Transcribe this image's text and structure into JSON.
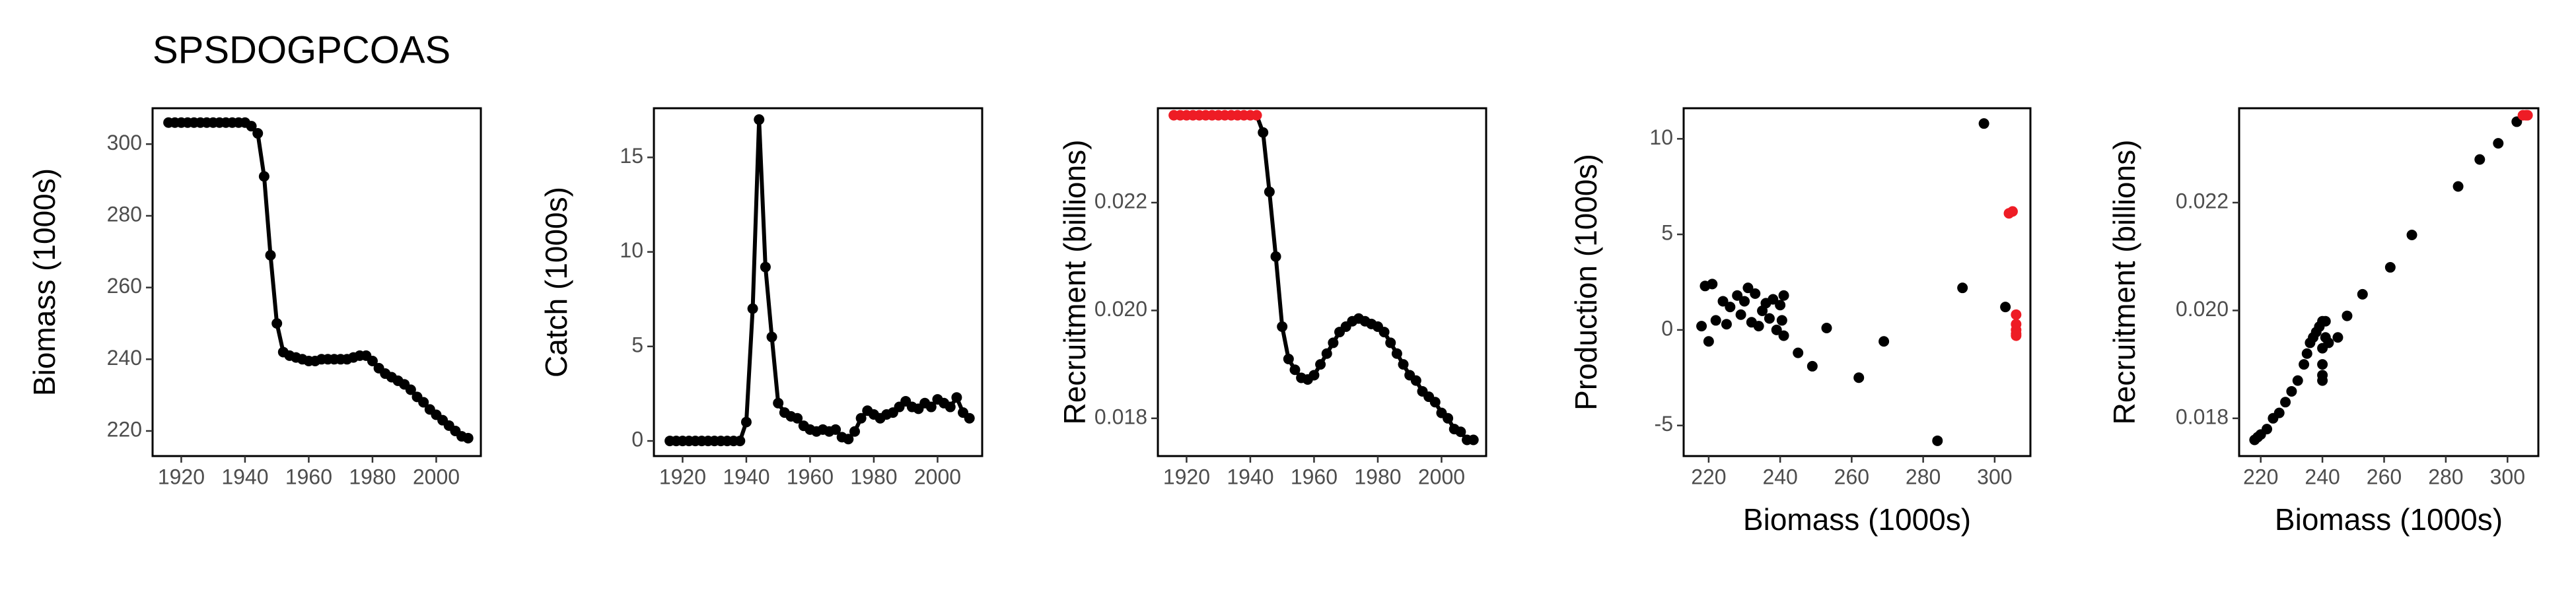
{
  "chart_data": [
    {
      "type": "line",
      "title": "SPSDOGPCOAS",
      "ylabel": "Biomass (1000s)",
      "x": [
        1916,
        1918,
        1920,
        1922,
        1924,
        1926,
        1928,
        1930,
        1932,
        1934,
        1936,
        1938,
        1940,
        1942,
        1944,
        1946,
        1948,
        1950,
        1952,
        1954,
        1956,
        1958,
        1960,
        1962,
        1964,
        1966,
        1968,
        1970,
        1972,
        1974,
        1976,
        1978,
        1980,
        1982,
        1984,
        1986,
        1988,
        1990,
        1992,
        1994,
        1996,
        1998,
        2000,
        2002,
        2004,
        2006,
        2008,
        2010
      ],
      "xlim": [
        1911,
        2014
      ],
      "xticks": [
        1920,
        1940,
        1960,
        1980,
        2000
      ],
      "ylim": [
        213,
        310
      ],
      "yticks": [
        220,
        240,
        260,
        280,
        300
      ],
      "series": [
        {
          "color": "#000000",
          "values": [
            306,
            306,
            306,
            306,
            306,
            306,
            306,
            306,
            306,
            306,
            306,
            306,
            306,
            305,
            303,
            291,
            269,
            250,
            242,
            241,
            240.5,
            240,
            239.5,
            239.5,
            240,
            240,
            240,
            240,
            240,
            240.5,
            241,
            241,
            239.5,
            237.5,
            236,
            235,
            234,
            233,
            231.5,
            229.5,
            228,
            226,
            224.5,
            223,
            221.5,
            220,
            218.5,
            218
          ]
        }
      ]
    },
    {
      "type": "line",
      "ylabel": "Catch (1000s)",
      "x": [
        1916,
        1918,
        1920,
        1922,
        1924,
        1926,
        1928,
        1930,
        1932,
        1934,
        1936,
        1938,
        1940,
        1942,
        1944,
        1946,
        1948,
        1950,
        1952,
        1954,
        1956,
        1958,
        1960,
        1962,
        1964,
        1966,
        1968,
        1970,
        1972,
        1974,
        1976,
        1978,
        1980,
        1982,
        1984,
        1986,
        1988,
        1990,
        1992,
        1994,
        1996,
        1998,
        2000,
        2002,
        2004,
        2006,
        2008,
        2010
      ],
      "xlim": [
        1911,
        2014
      ],
      "xticks": [
        1920,
        1940,
        1960,
        1980,
        2000
      ],
      "ylim": [
        -0.8,
        17.6
      ],
      "yticks": [
        0,
        5,
        10,
        15
      ],
      "series": [
        {
          "color": "#000000",
          "values": [
            0,
            0,
            0,
            0,
            0,
            0,
            0,
            0,
            0,
            0,
            0,
            0,
            1,
            7,
            17,
            9.2,
            5.5,
            2,
            1.5,
            1.3,
            1.2,
            0.8,
            0.6,
            0.5,
            0.6,
            0.5,
            0.6,
            0.2,
            0.1,
            0.5,
            1.2,
            1.6,
            1.4,
            1.2,
            1.4,
            1.5,
            1.8,
            2.1,
            1.8,
            1.7,
            2,
            1.8,
            2.2,
            2,
            1.8,
            2.3,
            1.5,
            1.2
          ]
        }
      ]
    },
    {
      "type": "line",
      "ylabel": "Recruitment (billions)",
      "x": [
        1916,
        1918,
        1920,
        1922,
        1924,
        1926,
        1928,
        1930,
        1932,
        1934,
        1936,
        1938,
        1940,
        1942,
        1944,
        1946,
        1948,
        1950,
        1952,
        1954,
        1956,
        1958,
        1960,
        1962,
        1964,
        1966,
        1968,
        1970,
        1972,
        1974,
        1976,
        1978,
        1980,
        1982,
        1984,
        1986,
        1988,
        1990,
        1992,
        1994,
        1996,
        1998,
        2000,
        2002,
        2004,
        2006,
        2008,
        2010
      ],
      "xlim": [
        1911,
        2014
      ],
      "xticks": [
        1920,
        1940,
        1960,
        1980,
        2000
      ],
      "ylim": [
        0.0173,
        0.02375
      ],
      "yticks": [
        0.018,
        {
          "value": 0.02,
          "label": "0.020"
        },
        0.022
      ],
      "series": [
        {
          "color": "#000000",
          "values": [
            0.02362,
            0.02362,
            0.02362,
            0.02362,
            0.02362,
            0.02362,
            0.02362,
            0.02362,
            0.02362,
            0.02362,
            0.02362,
            0.02362,
            0.02362,
            0.02362,
            0.0233,
            0.0222,
            0.021,
            0.0197,
            0.0191,
            0.0189,
            0.01875,
            0.01872,
            0.0188,
            0.019,
            0.0192,
            0.0194,
            0.0196,
            0.0197,
            0.0198,
            0.01985,
            0.0198,
            0.01975,
            0.0197,
            0.0196,
            0.0194,
            0.0192,
            0.019,
            0.0188,
            0.0187,
            0.0185,
            0.0184,
            0.0183,
            0.0181,
            0.018,
            0.0178,
            0.01775,
            0.0176,
            0.0176
          ],
          "point_colors": [
            "#ee1c25",
            "#ee1c25",
            "#ee1c25",
            "#ee1c25",
            "#ee1c25",
            "#ee1c25",
            "#ee1c25",
            "#ee1c25",
            "#ee1c25",
            "#ee1c25",
            "#ee1c25",
            "#ee1c25",
            "#ee1c25",
            "#ee1c25",
            "#000000",
            "#000000",
            "#000000",
            "#000000",
            "#000000",
            "#000000",
            "#000000",
            "#000000",
            "#000000",
            "#000000",
            "#000000",
            "#000000",
            "#000000",
            "#000000",
            "#000000",
            "#000000",
            "#000000",
            "#000000",
            "#000000",
            "#000000",
            "#000000",
            "#000000",
            "#000000",
            "#000000",
            "#000000",
            "#000000",
            "#000000",
            "#000000",
            "#000000",
            "#000000",
            "#000000",
            "#000000",
            "#000000",
            "#000000"
          ]
        }
      ]
    },
    {
      "type": "scatter",
      "xlabel": "Biomass (1000s)",
      "ylabel": "Production (1000s)",
      "xlim": [
        213,
        310
      ],
      "xticks": [
        220,
        240,
        260,
        280,
        300
      ],
      "ylim": [
        -6.6,
        11.6
      ],
      "yticks": [
        -5,
        0,
        5,
        10
      ],
      "x": [
        218,
        219,
        220,
        221,
        222,
        224,
        225,
        226,
        228,
        229,
        230,
        231,
        232,
        233,
        234,
        235,
        236,
        237,
        238,
        239,
        240,
        240.5,
        241,
        241,
        245,
        249,
        253,
        262,
        269,
        284,
        291,
        297,
        303,
        304,
        305,
        306,
        306,
        306,
        306,
        306
      ],
      "y": [
        0.2,
        2.3,
        -0.6,
        2.4,
        0.5,
        1.5,
        0.3,
        1.2,
        1.8,
        0.8,
        1.5,
        2.2,
        0.4,
        1.9,
        0.2,
        1,
        1.4,
        0.6,
        1.6,
        0,
        1.3,
        0.5,
        1.8,
        -0.3,
        -1.2,
        -1.9,
        0.1,
        -2.5,
        -0.6,
        -5.8,
        2.2,
        10.8,
        1.2,
        6.1,
        6.2,
        0.8,
        0.3,
        0,
        -0.2,
        -0.3
      ],
      "colors": [
        "#000000",
        "#000000",
        "#000000",
        "#000000",
        "#000000",
        "#000000",
        "#000000",
        "#000000",
        "#000000",
        "#000000",
        "#000000",
        "#000000",
        "#000000",
        "#000000",
        "#000000",
        "#000000",
        "#000000",
        "#000000",
        "#000000",
        "#000000",
        "#000000",
        "#000000",
        "#000000",
        "#000000",
        "#000000",
        "#000000",
        "#000000",
        "#000000",
        "#000000",
        "#000000",
        "#000000",
        "#000000",
        "#000000",
        "#ee1c25",
        "#ee1c25",
        "#ee1c25",
        "#ee1c25",
        "#ee1c25",
        "#ee1c25",
        "#ee1c25"
      ]
    },
    {
      "type": "scatter",
      "xlabel": "Biomass (1000s)",
      "ylabel": "Recruitment (billions)",
      "xlim": [
        213,
        310
      ],
      "xticks": [
        220,
        240,
        260,
        280,
        300
      ],
      "ylim": [
        0.0173,
        0.02375
      ],
      "yticks": [
        0.018,
        {
          "value": 0.02,
          "label": "0.020"
        },
        0.022
      ],
      "x": [
        218,
        219,
        220,
        222,
        224,
        226,
        228,
        230,
        232,
        234,
        235,
        236,
        237,
        238,
        239,
        240,
        241,
        240,
        240,
        240,
        241,
        240,
        242,
        245,
        248,
        253,
        262,
        269,
        284,
        291,
        297,
        303,
        305,
        306,
        306.5
      ],
      "y": [
        0.0176,
        0.01765,
        0.0177,
        0.0178,
        0.018,
        0.0181,
        0.0183,
        0.0185,
        0.0187,
        0.019,
        0.0192,
        0.0194,
        0.0195,
        0.0196,
        0.0197,
        0.0198,
        0.0198,
        0.0188,
        0.019,
        0.0193,
        0.0195,
        0.0187,
        0.0194,
        0.0195,
        0.0199,
        0.0203,
        0.0208,
        0.0214,
        0.0223,
        0.0228,
        0.0231,
        0.0235,
        0.02362,
        0.02362,
        0.02362
      ],
      "colors": [
        "#000000",
        "#000000",
        "#000000",
        "#000000",
        "#000000",
        "#000000",
        "#000000",
        "#000000",
        "#000000",
        "#000000",
        "#000000",
        "#000000",
        "#000000",
        "#000000",
        "#000000",
        "#000000",
        "#000000",
        "#000000",
        "#000000",
        "#000000",
        "#000000",
        "#000000",
        "#000000",
        "#000000",
        "#000000",
        "#000000",
        "#000000",
        "#000000",
        "#000000",
        "#000000",
        "#000000",
        "#000000",
        "#ee1c25",
        "#ee1c25",
        "#ee1c25"
      ]
    }
  ]
}
